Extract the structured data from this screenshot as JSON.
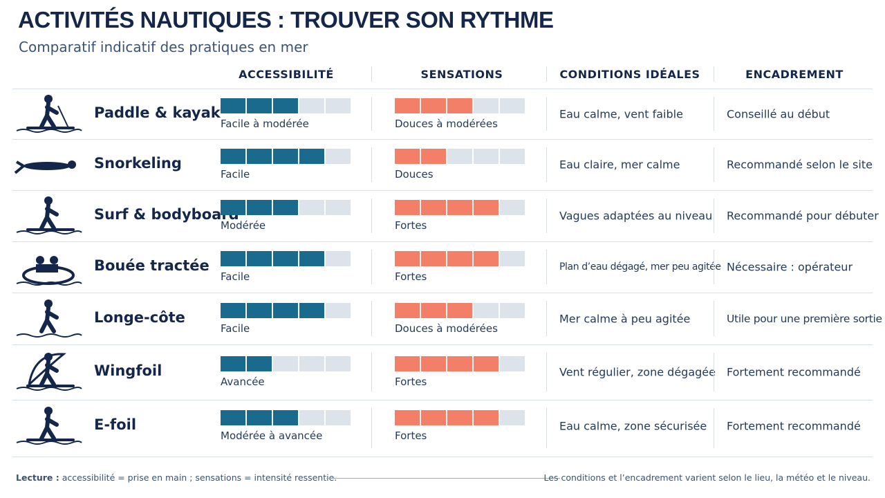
{
  "header": {
    "title": "ACTIVITÉS NAUTIQUES : TROUVER SON RYTHME",
    "subtitle": "Comparatif indicatif des pratiques en mer"
  },
  "table": {
    "columns": [
      "ACCESSIBILITÉ",
      "SENSATIONS",
      "CONDITIONS IDÉALES",
      "ENCADREMENT"
    ],
    "scale_max": 5,
    "rows": [
      {
        "activity": "Paddle & kayak",
        "accessibility": {
          "level": 3,
          "label": "Facile à modérée"
        },
        "sensations": {
          "level": 3,
          "label": "Douces à modérées"
        },
        "conditions": "Eau calme, vent faible",
        "supervision": "Conseillé au début"
      },
      {
        "activity": "Snorkeling",
        "accessibility": {
          "level": 4,
          "label": "Facile"
        },
        "sensations": {
          "level": 2,
          "label": "Douces"
        },
        "conditions": "Eau claire, mer calme",
        "supervision": "Recommandé selon le site"
      },
      {
        "activity": "Surf & bodyboard",
        "accessibility": {
          "level": 3,
          "label": "Modérée"
        },
        "sensations": {
          "level": 4,
          "label": "Fortes"
        },
        "conditions": "Vagues adaptées au niveau",
        "supervision": "Recommandé pour débuter"
      },
      {
        "activity": "Bouée tractée",
        "accessibility": {
          "level": 4,
          "label": "Facile"
        },
        "sensations": {
          "level": 4,
          "label": "Fortes"
        },
        "conditions": "Plan d’eau dégagé, mer peu agitée",
        "supervision": "Nécessaire : opérateur"
      },
      {
        "activity": "Longe-côte",
        "accessibility": {
          "level": 4,
          "label": "Facile"
        },
        "sensations": {
          "level": 3,
          "label": "Douces à modérées"
        },
        "conditions": "Mer calme à peu agitée",
        "supervision": "Utile pour une première sortie"
      },
      {
        "activity": "Wingfoil",
        "accessibility": {
          "level": 2,
          "label": "Avancée"
        },
        "sensations": {
          "level": 4,
          "label": "Fortes"
        },
        "conditions": "Vent régulier, zone dégagée",
        "supervision": "Fortement recommandé"
      },
      {
        "activity": "E-foil",
        "accessibility": {
          "level": 3,
          "label": "Modérée à avancée"
        },
        "sensations": {
          "level": 4,
          "label": "Fortes"
        },
        "conditions": "Eau calme, zone sécurisée",
        "supervision": "Fortement recommandé"
      }
    ]
  },
  "footer": {
    "legend_term": "Lecture :",
    "legend_text": "accessibilité = prise en main ; sensations = intensité ressentie.",
    "note": "Les conditions et l’encadrement varient selon le lieu, la météo et le niveau."
  }
}
